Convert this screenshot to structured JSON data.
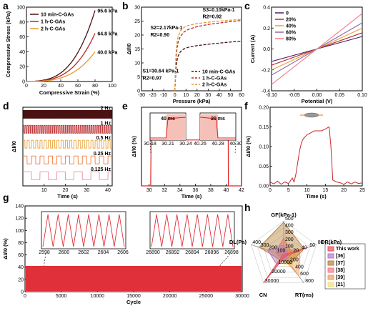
{
  "chart_data": [
    {
      "panel": "a",
      "type": "line",
      "xlabel": "Compressive Strain (%)",
      "ylabel": "Compressive Stress (kPa)",
      "xlim": [
        0,
        100
      ],
      "ylim": [
        0,
        100
      ],
      "xticks": [
        "0",
        "20",
        "40",
        "60",
        "80",
        "100"
      ],
      "yticks": [
        "0",
        "20",
        "40",
        "60",
        "80",
        "100"
      ],
      "series": [
        {
          "name": "10 min-C-GAs",
          "color": "#4a1212",
          "end_x": 80,
          "end_y": 95.6
        },
        {
          "name": "1 h-C-GAs",
          "color": "#b8282b",
          "end_x": 80,
          "end_y": 64.8
        },
        {
          "name": "2 h-C-GAs",
          "color": "#e89a2a",
          "end_x": 80,
          "end_y": 40.0
        }
      ],
      "annotations": [
        "95.6 kPa",
        "64.8 kPa",
        "40.0 kPa"
      ],
      "legend_position": "top-left"
    },
    {
      "panel": "b",
      "type": "line",
      "xlabel": "Pressure (kPa)",
      "ylabel": "ΔI/I0",
      "xlim": [
        -30,
        60
      ],
      "ylim": [
        0,
        30
      ],
      "xticks": [
        "-30",
        "-20",
        "-10",
        "0",
        "10",
        "20",
        "30",
        "40",
        "50",
        "60"
      ],
      "yticks": [
        "0",
        "5",
        "10",
        "15",
        "20",
        "25",
        "30"
      ],
      "series": [
        {
          "name": "10 min-C-GAs",
          "color": "#4a1212",
          "x": [
            0,
            1,
            2,
            3,
            5,
            8,
            12,
            20,
            30,
            40,
            50,
            60
          ],
          "y": [
            0,
            8,
            11,
            12.5,
            14,
            15,
            15.6,
            16.2,
            16.7,
            17.1,
            17.5,
            17.8
          ]
        },
        {
          "name": "1 h-C-GAs",
          "color": "#b8282b",
          "x": [
            0,
            1,
            2,
            3,
            5,
            8,
            12,
            20,
            30,
            40,
            50,
            60
          ],
          "y": [
            0,
            11,
            15.5,
            17.5,
            19.5,
            21,
            22,
            23,
            23.8,
            24.3,
            24.8,
            25.2
          ]
        },
        {
          "name": "2 h-C-GAs",
          "color": "#e89a2a",
          "x": [
            0,
            1,
            2,
            3,
            5,
            8,
            12,
            20,
            30,
            40,
            50,
            60
          ],
          "y": [
            0,
            13,
            17.5,
            19.5,
            21.5,
            22.7,
            23.4,
            24.1,
            24.6,
            25,
            25.3,
            25.6
          ]
        }
      ],
      "annotations": [
        "S3=0.10kPa-1",
        "R2=0.92",
        "S2=2.17kPa-1",
        "R2=0.90",
        "S1=30.64 kPa-1",
        "R2=0.97"
      ],
      "legend_position": "bottom-right"
    },
    {
      "panel": "c",
      "type": "line",
      "xlabel": "Potential (V)",
      "ylabel": "Current (A)",
      "xlim": [
        -0.1,
        0.1
      ],
      "ylim": [
        -0.4,
        0.4
      ],
      "xticks": [
        "-0.10",
        "-0.05",
        "0.00",
        "0.05",
        "0.10"
      ],
      "yticks": [
        "-0.4",
        "-0.2",
        "0.0",
        "0.2",
        "0.4"
      ],
      "series": [
        {
          "name": "0",
          "color": "#4a1a6b",
          "x": [
            -0.1,
            0.1
          ],
          "y": [
            -0.12,
            0.12
          ]
        },
        {
          "name": "20%",
          "color": "#b8282b",
          "x": [
            -0.1,
            0.1
          ],
          "y": [
            -0.155,
            0.155
          ]
        },
        {
          "name": "40%",
          "color": "#e8a23a",
          "x": [
            -0.1,
            0.1
          ],
          "y": [
            -0.2,
            0.2
          ]
        },
        {
          "name": "60%",
          "color": "#8a6aa8",
          "x": [
            -0.1,
            0.1
          ],
          "y": [
            -0.25,
            0.25
          ]
        },
        {
          "name": "80%",
          "color": "#f07a8a",
          "x": [
            -0.1,
            0.1
          ],
          "y": [
            -0.34,
            0.34
          ]
        }
      ],
      "legend_position": "top-left"
    },
    {
      "panel": "d",
      "type": "line",
      "xlabel": "Time (s)",
      "ylabel": "ΔI/I0",
      "xlim": [
        0,
        42
      ],
      "xticks": [
        "10",
        "20",
        "30",
        "40"
      ],
      "series": [
        {
          "name": "2 Hz",
          "color": "#4a1212",
          "freq": 2
        },
        {
          "name": "1 Hz",
          "color": "#b8282b",
          "freq": 1
        },
        {
          "name": "0.5 Hz",
          "color": "#e8a23a",
          "freq": 0.5
        },
        {
          "name": "0.25 Hz",
          "color": "#f07a3a",
          "freq": 0.25
        },
        {
          "name": "0.125 Hz",
          "color": "#f08aa0",
          "freq": 0.125
        }
      ]
    },
    {
      "panel": "e",
      "type": "line",
      "xlabel": "Time (s)",
      "ylabel": "ΔI/I0 (%)",
      "xlim": [
        29,
        42
      ],
      "ylim": [
        0,
        60
      ],
      "xticks": [
        "30",
        "32",
        "34",
        "36",
        "38",
        "40",
        "42"
      ],
      "series": [
        {
          "name": "",
          "color": "#e02020",
          "x": [
            29,
            30.2,
            30.24,
            40.27,
            40.29,
            42
          ],
          "y": [
            0,
            0,
            35,
            35,
            0,
            0
          ]
        }
      ],
      "insets": [
        {
          "label": "40 ms",
          "xticks": [
            "30.18",
            "30.21",
            "30.24"
          ]
        },
        {
          "label": "20 ms",
          "xticks": [
            "40.26",
            "40.28",
            "40.30"
          ]
        }
      ]
    },
    {
      "panel": "f",
      "type": "line",
      "xlabel": "Time (s)",
      "ylabel": "ΔI/I0 (%)",
      "xlim": [
        0,
        25
      ],
      "ylim": [
        0,
        0.2
      ],
      "xticks": [
        "0",
        "5",
        "10",
        "15",
        "20",
        "25"
      ],
      "yticks": [
        "0.00",
        "0.05",
        "0.10",
        "0.15",
        "0.20"
      ],
      "series": [
        {
          "name": "",
          "color": "#c8282b",
          "x": [
            0,
            1,
            2,
            3,
            4,
            5,
            6,
            6.5,
            7,
            7.5,
            8,
            8.5,
            9,
            10,
            11,
            12,
            13,
            14,
            15,
            16,
            16.5,
            17,
            18,
            19,
            20,
            21,
            22,
            23,
            24,
            25
          ],
          "y": [
            0.01,
            0.005,
            0.012,
            0.004,
            0.01,
            0.006,
            0.02,
            0.01,
            0.03,
            0.06,
            0.09,
            0.11,
            0.12,
            0.13,
            0.135,
            0.14,
            0.14,
            0.14,
            0.145,
            0.15,
            0.1,
            0.015,
            0.01,
            0.008,
            0.004,
            0.01,
            0.005,
            0.01,
            0.006,
            0.008
          ]
        }
      ]
    },
    {
      "panel": "g",
      "type": "line",
      "xlabel": "Cycle",
      "ylabel": "ΔI/I0 (%)",
      "xlim": [
        0,
        30000
      ],
      "ylim": [
        0,
        140
      ],
      "xticks": [
        "0",
        "5000",
        "10000",
        "15000",
        "20000",
        "25000",
        "30000"
      ],
      "yticks": [
        "0",
        "20",
        "40",
        "60",
        "80",
        "100",
        "120",
        "140"
      ],
      "series": [
        {
          "name": "",
          "color": "#e0303a",
          "band_low": 0,
          "band_high": 42
        }
      ],
      "insets": [
        {
          "xticks": [
            "2598",
            "2600",
            "2602",
            "2604",
            "2606"
          ]
        },
        {
          "xticks": [
            "26890",
            "26892",
            "26894",
            "26896",
            "26898"
          ]
        }
      ]
    },
    {
      "panel": "h",
      "type": "radar",
      "axes": [
        {
          "name": "GF(kPa-1)",
          "ticks": [
            "0",
            "100",
            "200",
            "300",
            "400",
            "500"
          ]
        },
        {
          "name": "DR(kPa)",
          "ticks": [
            "0",
            "20",
            "40",
            "60",
            "80"
          ]
        },
        {
          "name": "RT(ms)",
          "ticks": [
            "0",
            "200",
            "400",
            "600",
            "800"
          ]
        },
        {
          "name": "CN",
          "ticks": [
            "0",
            "10000",
            "20000",
            "30000"
          ]
        },
        {
          "name": "DL(Pa)",
          "ticks": [
            "0",
            "100",
            "200",
            "300",
            "400"
          ]
        }
      ],
      "series": [
        {
          "name": "This work",
          "color": "#e8505a",
          "values": [
            10,
            60,
            40,
            30000,
            10
          ]
        },
        {
          "name": "[36]",
          "color": "#b87ac8",
          "values": [
            150,
            10,
            100,
            10000,
            200
          ]
        },
        {
          "name": "[37]",
          "color": "#b8823a",
          "values": [
            480,
            50,
            250,
            5000,
            300
          ]
        },
        {
          "name": "[38]",
          "color": "#f07a8a",
          "values": [
            250,
            20,
            150,
            3000,
            100
          ]
        },
        {
          "name": "[39]",
          "color": "#f0a060",
          "values": [
            80,
            40,
            600,
            2000,
            50
          ]
        },
        {
          "name": "[21]",
          "color": "#f0e07a",
          "values": [
            120,
            30,
            300,
            8000,
            150
          ]
        }
      ]
    }
  ],
  "labels": {
    "a": "a",
    "b": "b",
    "c": "c",
    "d": "d",
    "e": "e",
    "f": "f",
    "g": "g",
    "h": "h"
  }
}
